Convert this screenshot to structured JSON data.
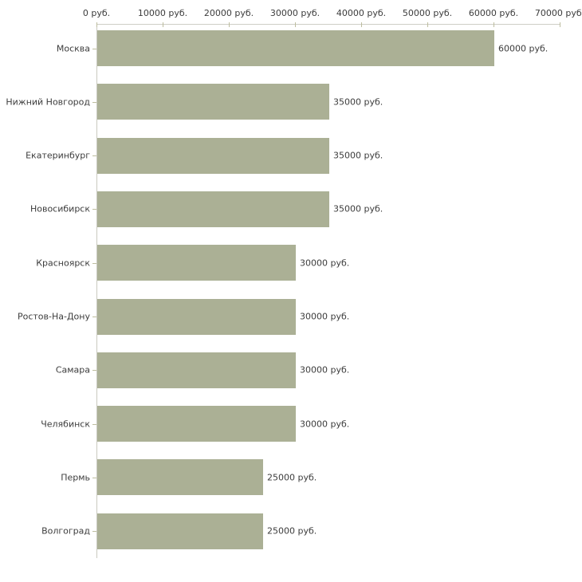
{
  "chart_data": {
    "type": "bar",
    "orientation": "horizontal",
    "title": "",
    "xlabel": "",
    "ylabel": "",
    "unit": "руб.",
    "xlim": [
      0,
      70000
    ],
    "grid": false,
    "legend": false,
    "bar_color": "#abb095",
    "axis_color": "#cfcfc6",
    "tick_color": "#bdbd9f",
    "text_color": "#3c3c3c",
    "categories": [
      "Москва",
      "Нижний Новгород",
      "Екатеринбург",
      "Новосибирск",
      "Красноярск",
      "Ростов-На-Дону",
      "Самара",
      "Челябинск",
      "Пермь",
      "Волгоград"
    ],
    "values": [
      60000,
      35000,
      35000,
      35000,
      30000,
      30000,
      30000,
      30000,
      25000,
      25000
    ],
    "value_labels": [
      "60000 руб.",
      "35000 руб.",
      "35000 руб.",
      "35000 руб.",
      "30000 руб.",
      "30000 руб.",
      "30000 руб.",
      "30000 руб.",
      "25000 руб.",
      "25000 руб."
    ],
    "x_ticks": [
      {
        "value": 0,
        "label": "0 руб."
      },
      {
        "value": 10000,
        "label": "10000 руб."
      },
      {
        "value": 20000,
        "label": "20000 руб."
      },
      {
        "value": 30000,
        "label": "30000 руб."
      },
      {
        "value": 40000,
        "label": "40000 руб."
      },
      {
        "value": 50000,
        "label": "50000 руб."
      },
      {
        "value": 60000,
        "label": "60000 руб."
      },
      {
        "value": 70000,
        "label": "70000 руб."
      }
    ]
  }
}
